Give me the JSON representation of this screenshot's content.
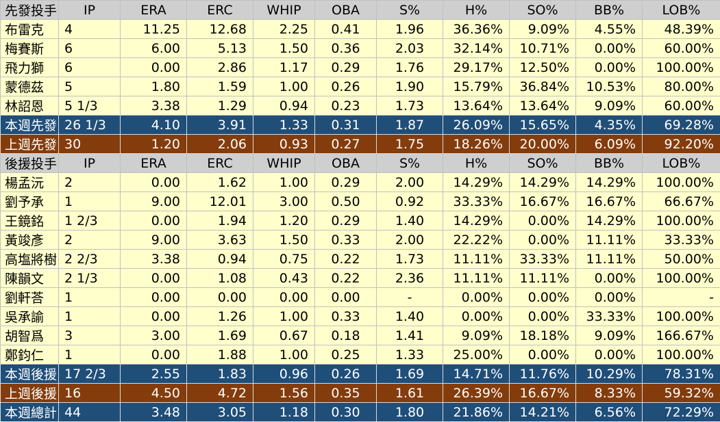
{
  "columns": [
    "IP",
    "ERA",
    "ERC",
    "WHIP",
    "OBA",
    "S%",
    "H%",
    "SO%",
    "BB%",
    "LOB%"
  ],
  "sections": [
    {
      "header": "先發投手",
      "players": [
        [
          "布雷克",
          "4",
          "11.25",
          "12.68",
          "2.25",
          "0.41",
          "1.96",
          "36.36%",
          "9.09%",
          "4.55%",
          "48.39%"
        ],
        [
          "梅賽斯",
          "6",
          "6.00",
          "5.13",
          "1.50",
          "0.36",
          "2.03",
          "32.14%",
          "10.71%",
          "0.00%",
          "60.00%"
        ],
        [
          "飛力獅",
          "6",
          "0.00",
          "2.86",
          "1.17",
          "0.29",
          "1.76",
          "29.17%",
          "12.50%",
          "0.00%",
          "100.00%"
        ],
        [
          "蒙德茲",
          "5",
          "1.80",
          "1.59",
          "1.00",
          "0.26",
          "1.90",
          "15.79%",
          "36.84%",
          "10.53%",
          "80.00%"
        ],
        [
          "林詔恩",
          "5 1/3",
          "3.38",
          "1.29",
          "0.94",
          "0.23",
          "1.73",
          "13.64%",
          "13.64%",
          "9.09%",
          "60.00%"
        ]
      ],
      "totals": [
        {
          "style": "blue",
          "row": [
            "本週先發",
            "26 1/3",
            "4.10",
            "3.91",
            "1.33",
            "0.31",
            "1.87",
            "26.09%",
            "15.65%",
            "4.35%",
            "69.28%"
          ]
        },
        {
          "style": "brown",
          "row": [
            "上週先發",
            "30",
            "1.20",
            "2.06",
            "0.93",
            "0.27",
            "1.75",
            "18.26%",
            "20.00%",
            "6.09%",
            "92.20%"
          ]
        }
      ]
    },
    {
      "header": "後援投手",
      "players": [
        [
          "楊孟沅",
          "2",
          "0.00",
          "1.62",
          "1.00",
          "0.29",
          "2.00",
          "14.29%",
          "14.29%",
          "14.29%",
          "100.00%"
        ],
        [
          "劉予承",
          "1",
          "9.00",
          "12.01",
          "3.00",
          "0.50",
          "0.92",
          "33.33%",
          "16.67%",
          "16.67%",
          "66.67%"
        ],
        [
          "王鏡銘",
          "1 2/3",
          "0.00",
          "1.94",
          "1.20",
          "0.29",
          "1.40",
          "14.29%",
          "0.00%",
          "14.29%",
          "100.00%"
        ],
        [
          "黃竣彥",
          "2",
          "9.00",
          "3.63",
          "1.50",
          "0.33",
          "2.00",
          "22.22%",
          "0.00%",
          "11.11%",
          "33.33%"
        ],
        [
          "高塩將樹",
          "2 2/3",
          "3.38",
          "0.94",
          "0.75",
          "0.22",
          "1.73",
          "11.11%",
          "33.33%",
          "11.11%",
          "50.00%"
        ],
        [
          "陳韻文",
          "2 1/3",
          "0.00",
          "1.08",
          "0.43",
          "0.22",
          "2.36",
          "11.11%",
          "11.11%",
          "0.00%",
          "100.00%"
        ],
        [
          "劉軒荅",
          "1",
          "0.00",
          "0.00",
          "0.00",
          "0.00",
          "-",
          "0.00%",
          "0.00%",
          "0.00%",
          "-"
        ],
        [
          "吳承諭",
          "1",
          "0.00",
          "1.26",
          "1.00",
          "0.33",
          "1.40",
          "0.00%",
          "0.00%",
          "33.33%",
          "100.00%"
        ],
        [
          "胡智爲",
          "3",
          "3.00",
          "1.69",
          "0.67",
          "0.18",
          "1.41",
          "9.09%",
          "18.18%",
          "9.09%",
          "166.67%"
        ],
        [
          "鄭鈞仁",
          "1",
          "0.00",
          "1.88",
          "1.00",
          "0.25",
          "1.33",
          "25.00%",
          "0.00%",
          "0.00%",
          "100.00%"
        ]
      ],
      "totals": [
        {
          "style": "blue",
          "row": [
            "本週後援",
            "17 2/3",
            "2.55",
            "1.83",
            "0.96",
            "0.26",
            "1.69",
            "14.71%",
            "11.76%",
            "10.29%",
            "78.31%"
          ]
        },
        {
          "style": "brown",
          "row": [
            "上週後援",
            "16",
            "4.50",
            "4.72",
            "1.56",
            "0.35",
            "1.61",
            "26.39%",
            "16.67%",
            "8.33%",
            "59.32%"
          ]
        },
        {
          "style": "blue",
          "row": [
            "本週總計",
            "44",
            "3.48",
            "3.05",
            "1.18",
            "0.30",
            "1.80",
            "21.86%",
            "14.21%",
            "6.56%",
            "72.29%"
          ]
        }
      ]
    }
  ],
  "colors": {
    "header_bg": "#cfcfcf",
    "player_bg": "#ffffcc",
    "blue_total_bg": "#1f4e79",
    "brown_total_bg": "#843c0c"
  }
}
